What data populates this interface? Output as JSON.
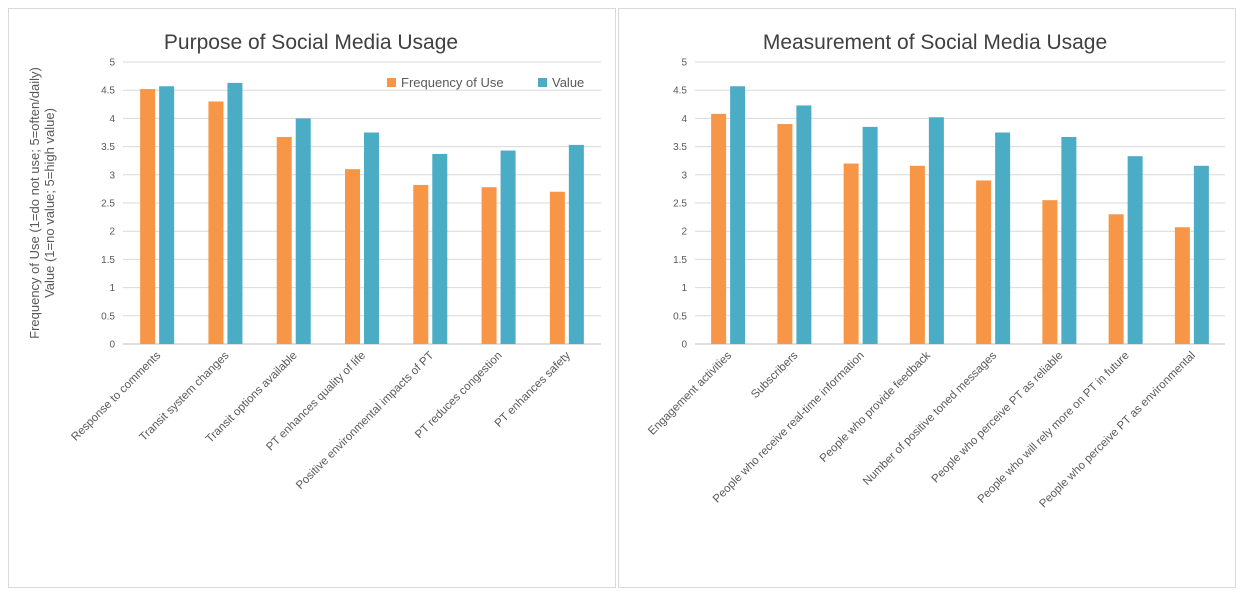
{
  "colors": {
    "frequency": "#F79646",
    "value": "#4BACC6"
  },
  "chart_data": [
    {
      "type": "bar",
      "title": "Purpose of Social Media Usage",
      "ylabel_line1": "Frequency of Use (1=do not use; 5=often/daily)",
      "ylabel_line2": "Value (1=no value; 5=high value)",
      "ylim": [
        0,
        5
      ],
      "yticks": [
        "0",
        "0.5",
        "1",
        "1.5",
        "2",
        "2.5",
        "3",
        "3.5",
        "4",
        "4.5",
        "5"
      ],
      "grid": true,
      "legend_position": "top-right",
      "categories": [
        "Response to comments",
        "Transit system changes",
        "Transit options available",
        "PT enhances quality of life",
        "Positive environmental impacts of PT",
        "PT reduces congestion",
        "PT enhances safety"
      ],
      "series": [
        {
          "name": "Frequency of Use",
          "values": [
            4.52,
            4.3,
            3.67,
            3.1,
            2.82,
            2.78,
            2.7
          ]
        },
        {
          "name": "Value",
          "values": [
            4.57,
            4.63,
            4.0,
            3.75,
            3.37,
            3.43,
            3.53
          ]
        }
      ]
    },
    {
      "type": "bar",
      "title": "Measurement of Social Media Usage",
      "ylim": [
        0,
        5
      ],
      "yticks": [
        "0",
        "0.5",
        "1",
        "1.5",
        "2",
        "2.5",
        "3",
        "3.5",
        "4",
        "4.5",
        "5"
      ],
      "grid": true,
      "categories": [
        "Engagement activities",
        "Subscribers",
        "People who receive real-time information",
        "People who provide feedback",
        "Number of positive toned messages",
        "People who perceive PT as reliable",
        "People who will rely more on PT in future",
        "People who perceive PT as environmental"
      ],
      "series": [
        {
          "name": "Frequency of Use",
          "values": [
            4.08,
            3.9,
            3.2,
            3.16,
            2.9,
            2.55,
            2.3,
            2.07
          ]
        },
        {
          "name": "Value",
          "values": [
            4.57,
            4.23,
            3.85,
            4.02,
            3.75,
            3.67,
            3.33,
            3.16
          ]
        }
      ]
    }
  ]
}
